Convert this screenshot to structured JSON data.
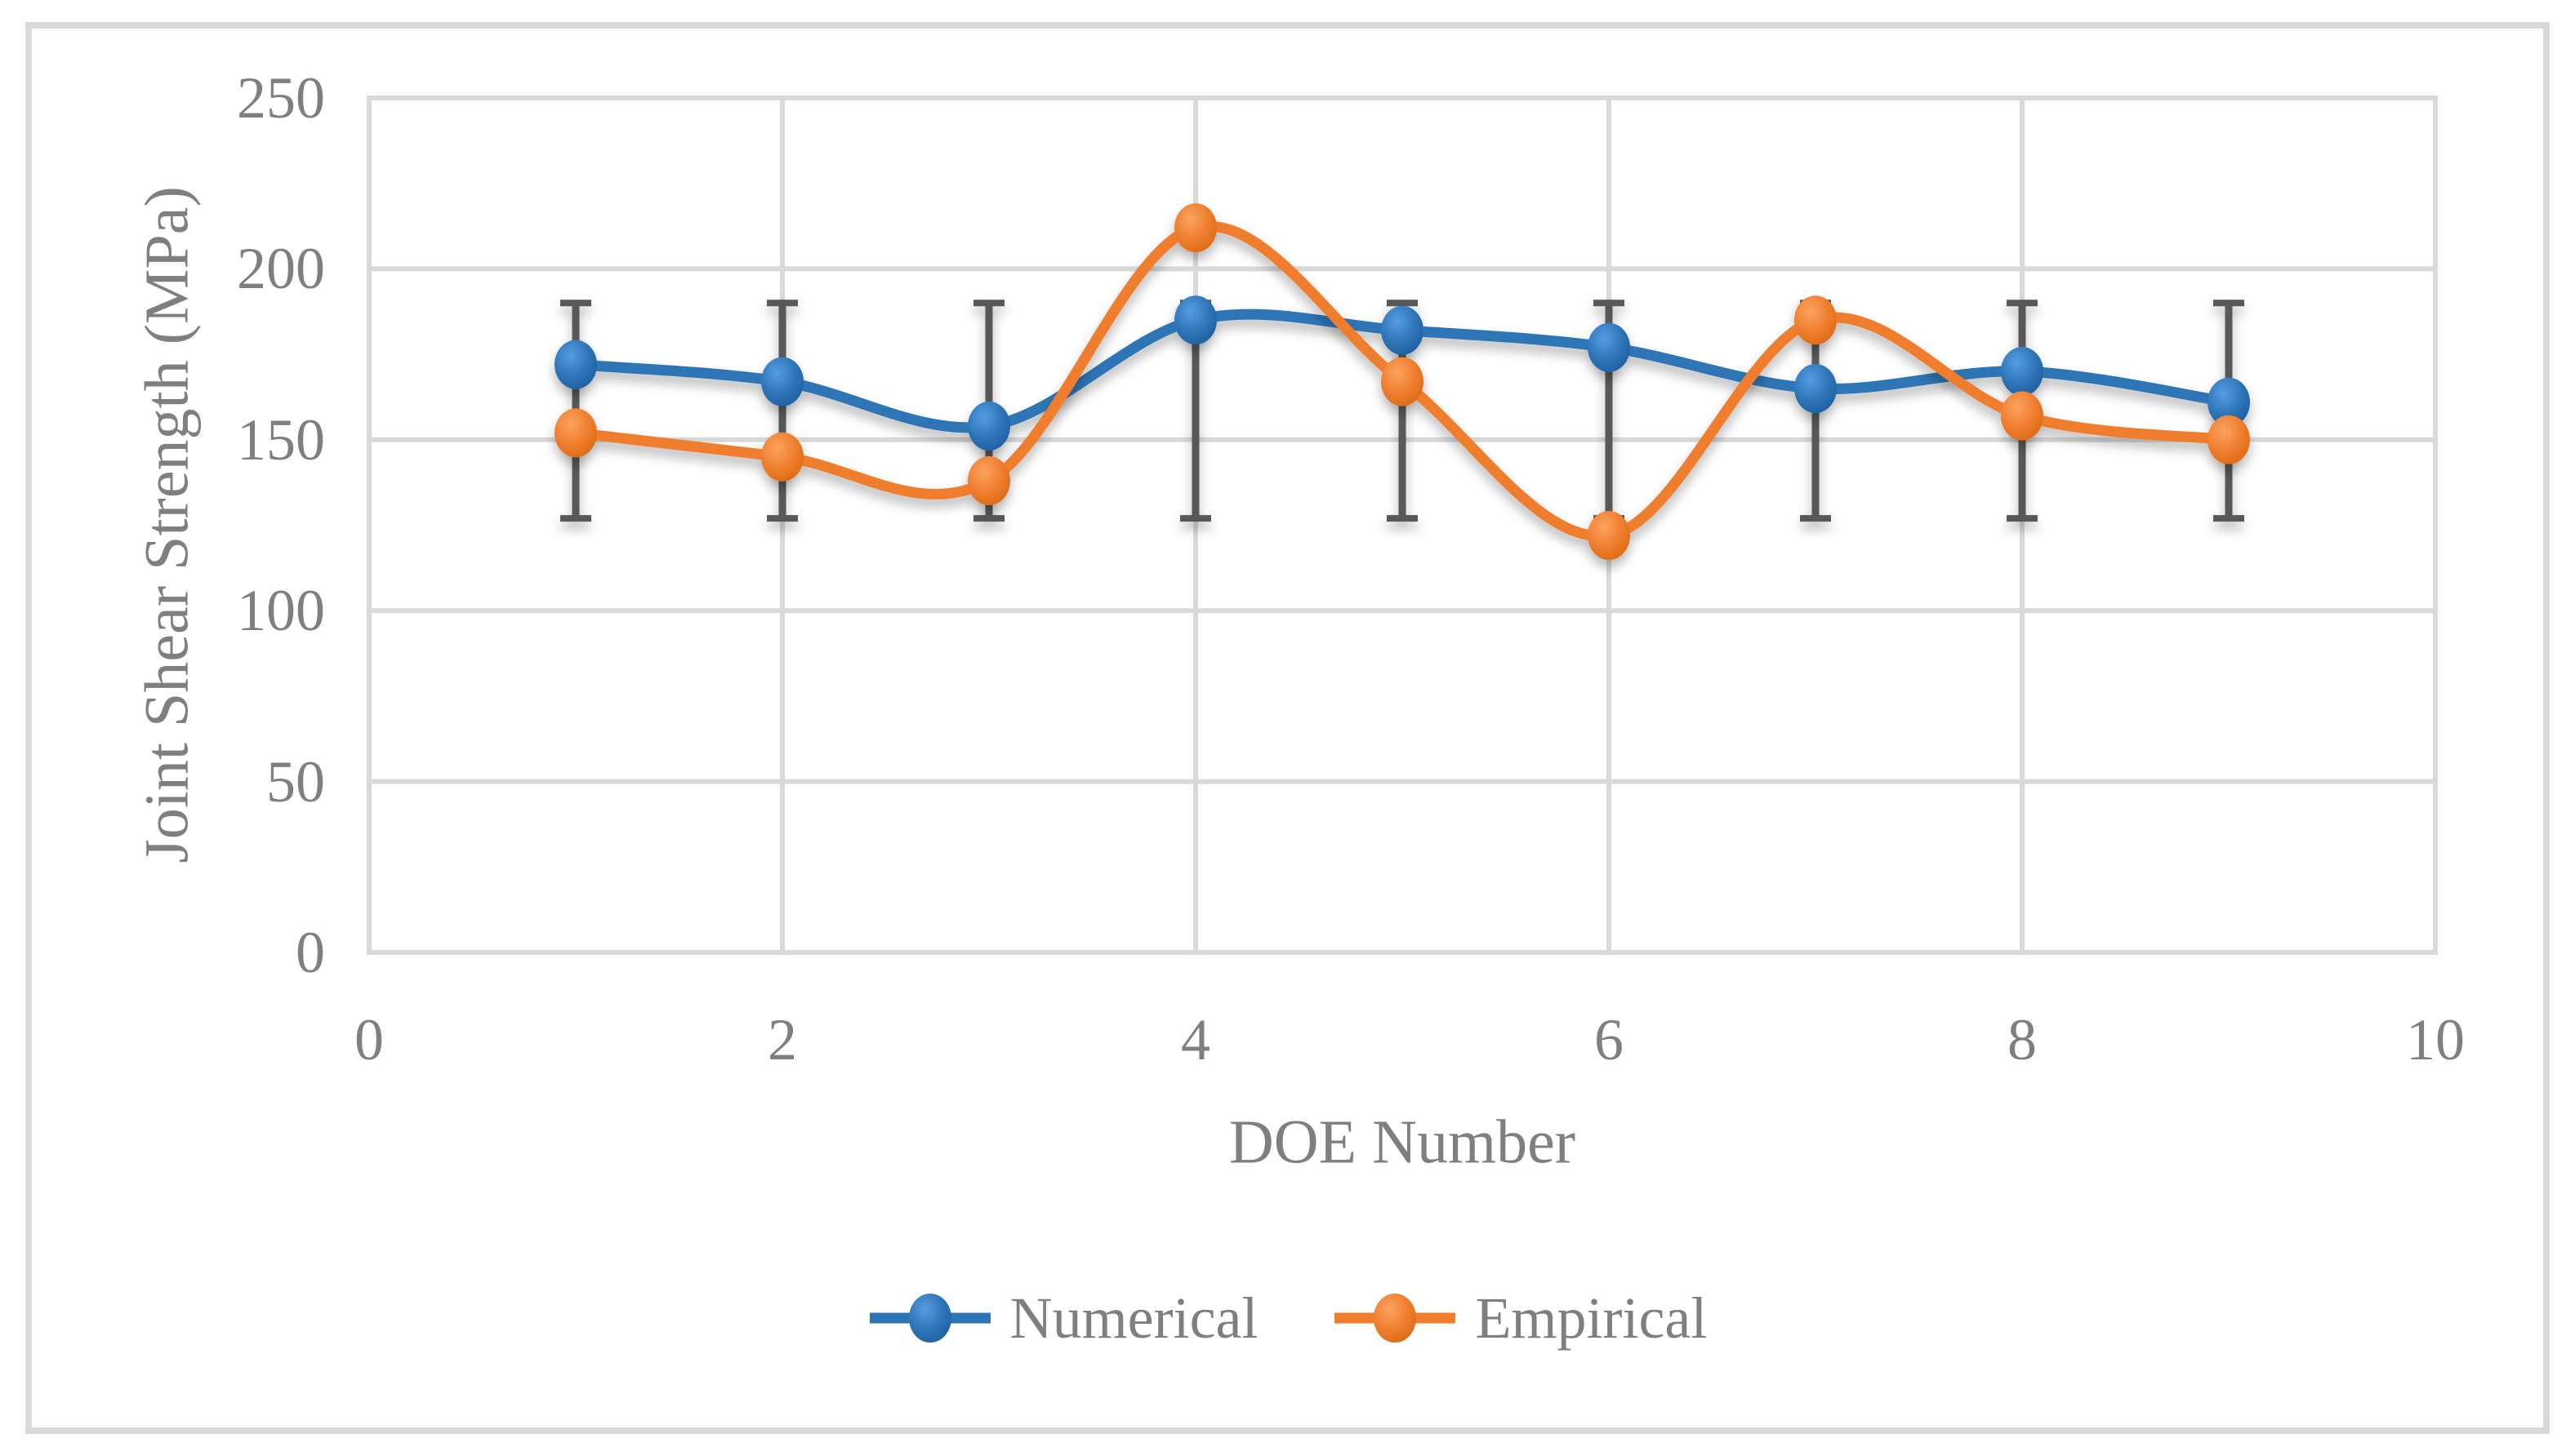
{
  "figure": {
    "background_color": "#FFFFFF",
    "border_color": "#D9D9D9"
  },
  "chart_data": {
    "type": "line",
    "smooth": true,
    "x": [
      1,
      2,
      3,
      4,
      5,
      6,
      7,
      8,
      9
    ],
    "series": [
      {
        "name": "Numerical",
        "color": "#2E75B6",
        "marker": "circle",
        "values": [
          172,
          167,
          154,
          185,
          182,
          177,
          165,
          170,
          161
        ]
      },
      {
        "name": "Empirical",
        "color": "#EE7D2E",
        "marker": "circle",
        "values": [
          152,
          145,
          138,
          212,
          167,
          122,
          185,
          157,
          150
        ]
      }
    ],
    "error_bars": {
      "x": [
        1,
        2,
        3,
        4,
        5,
        6,
        7,
        8,
        9
      ],
      "low": 127,
      "high": 190,
      "color": "#595959"
    },
    "title": "",
    "xlabel": "DOE Number",
    "ylabel": "Joint Shear Strength (MPa)",
    "x_ticks": [
      0,
      2,
      4,
      6,
      8,
      10
    ],
    "y_ticks": [
      0,
      50,
      100,
      150,
      200,
      250
    ],
    "x_range": [
      0,
      10
    ],
    "y_range": [
      0,
      250
    ],
    "grid": true,
    "grid_color": "#D9D9D9",
    "text_color": "#7F7F7F",
    "legend_position": "bottom",
    "legend": [
      "Numerical",
      "Empirical"
    ]
  }
}
